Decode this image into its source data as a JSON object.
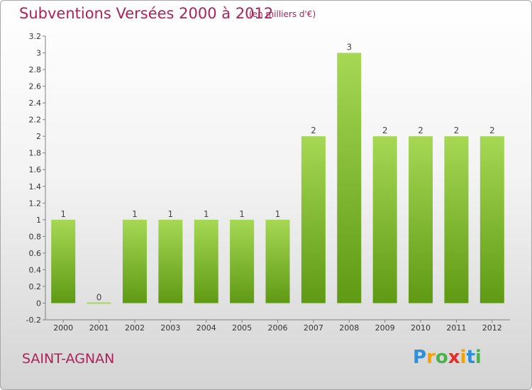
{
  "title": "Subventions Versées 2000 à 2012",
  "unit_note": "(en milliers d'€)",
  "commune": "SAINT-AGNAN",
  "logo": {
    "letters": [
      "P",
      "r",
      "o",
      "x",
      "i",
      "t",
      "i"
    ],
    "colors": [
      "#2e8ed6",
      "#f5a100",
      "#4cb24c",
      "#e42d28",
      "#f5a100",
      "#2e8ed6",
      "#4cb24c"
    ]
  },
  "colors": {
    "bar_light": "#a6d854",
    "bar_dark": "#5f9a14",
    "axis": "#808080",
    "title": "#b0215a"
  },
  "chart_data": {
    "type": "bar",
    "title": "Subventions Versées 2000 à 2012",
    "xlabel": "",
    "ylabel": "",
    "categories": [
      "2000",
      "2001",
      "2002",
      "2003",
      "2004",
      "2005",
      "2006",
      "2007",
      "2008",
      "2009",
      "2010",
      "2011",
      "2012"
    ],
    "values": [
      1,
      0,
      1,
      1,
      1,
      1,
      1,
      2,
      3,
      2,
      2,
      2,
      2
    ],
    "data_labels": [
      "1",
      "0",
      "1",
      "1",
      "1",
      "1",
      "1",
      "2",
      "3",
      "2",
      "2",
      "2",
      "2"
    ],
    "ylim": [
      -0.2,
      3.2
    ],
    "yticks": [
      -0.2,
      0,
      0.2,
      0.4,
      0.6,
      0.8,
      1,
      1.2,
      1.4,
      1.6,
      1.8,
      2,
      2.2,
      2.4,
      2.6,
      2.8,
      3,
      3.2
    ],
    "ytick_labels": [
      "-0.2",
      "0",
      "0.2",
      "0.4",
      "0.6",
      "0.8",
      "1",
      "1.2",
      "1.4",
      "1.6",
      "1.8",
      "2",
      "2.2",
      "2.4",
      "2.6",
      "2.8",
      "3",
      "3.2"
    ],
    "grid": false,
    "legend": "none"
  }
}
